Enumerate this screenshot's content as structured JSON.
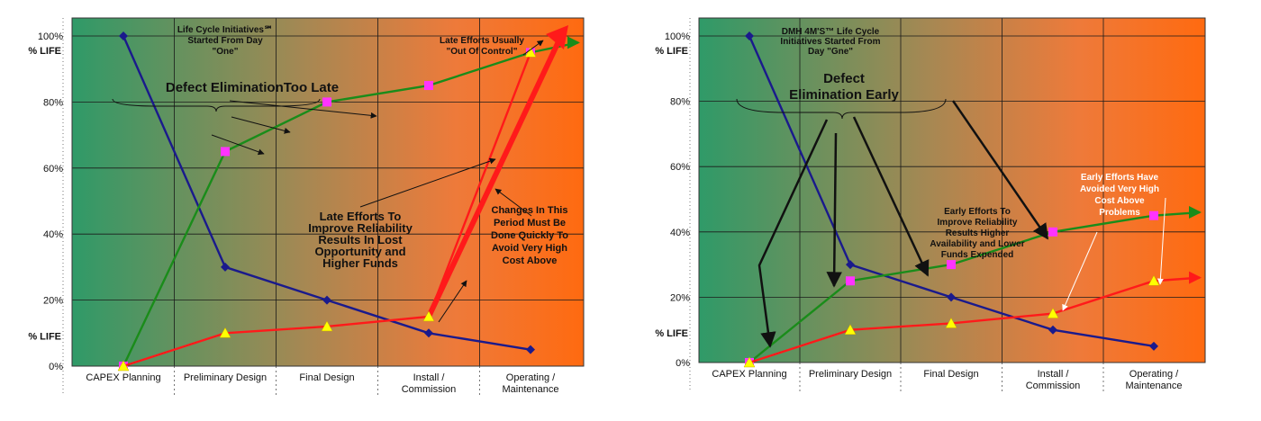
{
  "chart_data": [
    {
      "type": "line",
      "ylabel_top": "% LIFE",
      "ylabel_bottom": "% LIFE",
      "y_ticks": [
        "0%",
        "20%",
        "40%",
        "60%",
        "80%",
        "100%"
      ],
      "ylim": [
        0,
        100
      ],
      "categories": [
        "CAPEX Planning",
        "Preliminary Design",
        "Final Design",
        "Install / Commission",
        "Operating / Maintenance"
      ],
      "series": [
        {
          "values": [
            100,
            30,
            20,
            10,
            5
          ],
          "color": "#1a1a8c",
          "marker": "diamond"
        },
        {
          "values": [
            0,
            65,
            80,
            85,
            95
          ],
          "color": "#1a8c1a",
          "marker": "square",
          "marker_color": "#ff33ff",
          "extend_to": 98
        },
        {
          "values": [
            0,
            10,
            12,
            15,
            95
          ],
          "color": "#ff1a1a",
          "marker": "triangle",
          "marker_color": "#ffff00",
          "arrow": true
        }
      ],
      "grid": true,
      "annotations": {
        "initiatives": [
          "Life Cycle Initiatives℠",
          "Started From Day",
          "\"One\""
        ],
        "defect": "Defect EliminationToo Late",
        "late_control": [
          "Late Efforts Usually",
          "\"Out Of Control\""
        ],
        "late_efforts": [
          "Late Efforts To",
          "Improve Reliability",
          "Results In Lost",
          "Opportunity and",
          "Higher Funds"
        ],
        "changes": [
          "Changes In This",
          "Period Must Be",
          "Done Quickly To",
          "Avoid Very High",
          "Cost Above"
        ]
      }
    },
    {
      "type": "line",
      "ylabel_top": "% LIFE",
      "ylabel_bottom": "% LIFE",
      "y_ticks": [
        "0%",
        "20%",
        "40%",
        "60%",
        "80%",
        "100%"
      ],
      "ylim": [
        0,
        100
      ],
      "categories": [
        "CAPEX Planning",
        "Preliminary Design",
        "Final Design",
        "Install / Commission",
        "Operating / Maintenance"
      ],
      "series": [
        {
          "values": [
            100,
            30,
            20,
            10,
            5
          ],
          "color": "#1a1a8c",
          "marker": "diamond"
        },
        {
          "values": [
            0,
            25,
            30,
            40,
            45
          ],
          "color": "#1a8c1a",
          "marker": "square",
          "marker_color": "#ff33ff",
          "extend_to": 46
        },
        {
          "values": [
            0,
            10,
            12,
            15,
            25
          ],
          "color": "#ff1a1a",
          "marker": "triangle",
          "marker_color": "#ffff00",
          "extend_to": 26
        }
      ],
      "grid": true,
      "annotations": {
        "initiatives": [
          "DMH 4M'S™ Life Cycle",
          "Initiatives Started From",
          "Day \"Gne\""
        ],
        "defect": [
          "Defect",
          "Elimination Early"
        ],
        "early_efforts": [
          "Early Efforts To",
          "Improve Reliability",
          "Results Higher",
          "Availability and Lower",
          "Funds Expended"
        ],
        "early_avoided": [
          "Early Efforts Have",
          "Avoided Very High",
          "Cost Above",
          "Problems"
        ]
      }
    }
  ]
}
